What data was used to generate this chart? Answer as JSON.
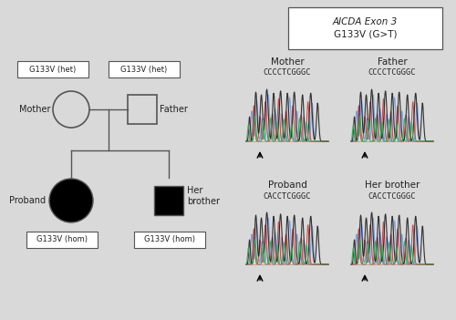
{
  "bg_color": "#d9d9d9",
  "title_box_text1": "AICDA Exon 3",
  "title_box_text2": "G133V (G>T)",
  "mother_label": "Mother",
  "father_label": "Father",
  "proband_label": "Proband",
  "brother_label": "Her brother",
  "mother_seq": "CCCCTCGGGC",
  "father_seq": "CCCCTCGGGC",
  "proband_seq": "CACCTCGGGC",
  "brother_seq": "CACCTCGGGC",
  "het_label": "G133V (het)",
  "hom_label": "G133V (hom)",
  "text_color": "#222222",
  "line_color": "#555555",
  "box_edge_color": "#555555",
  "box_color": "#ffffff",
  "chrom_blue": "#7799dd",
  "chrom_red": "#cc4444",
  "chrom_black": "#222222",
  "chrom_green": "#33aa55"
}
